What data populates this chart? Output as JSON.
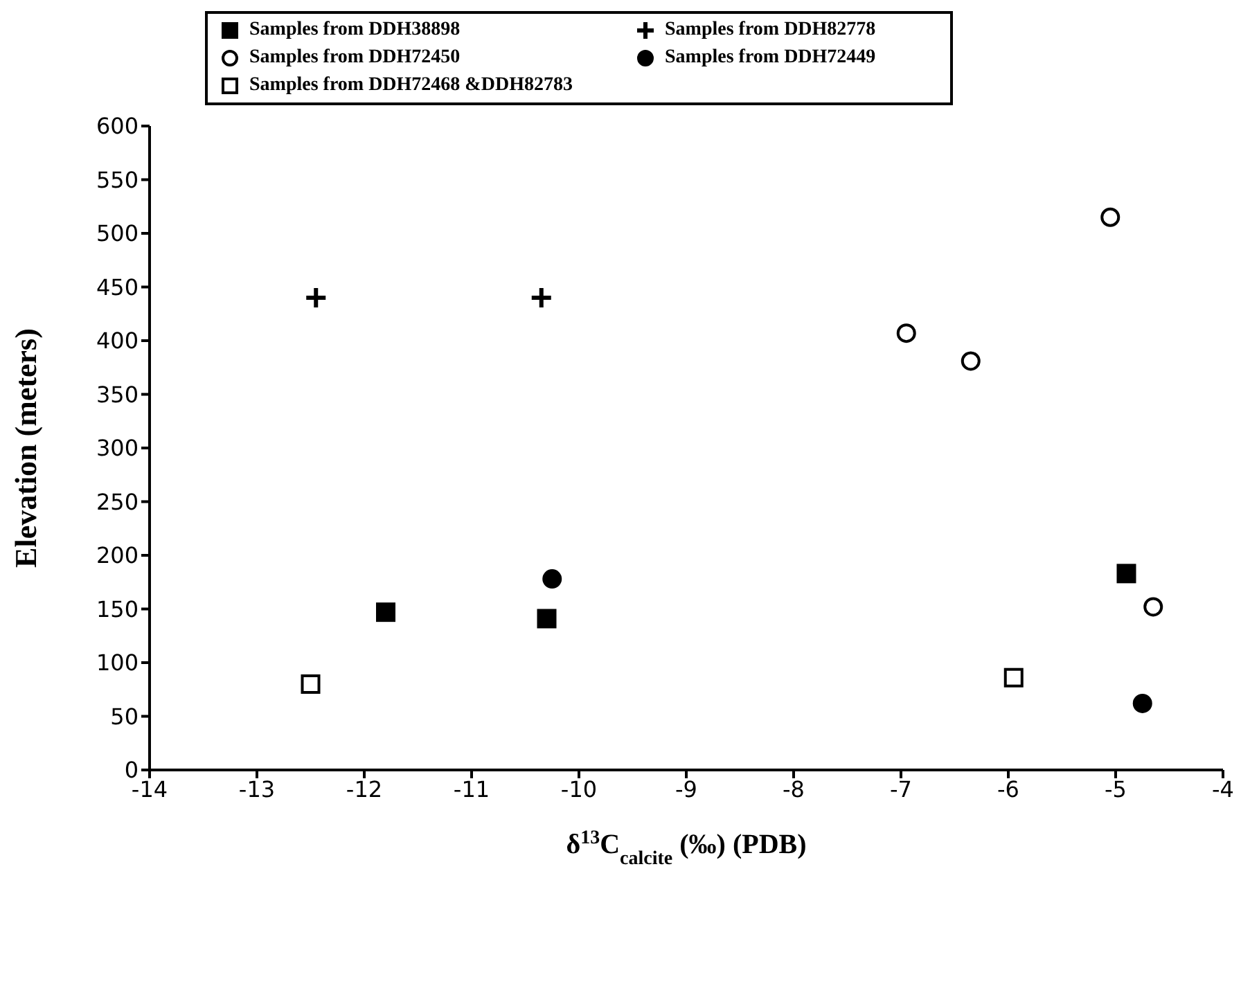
{
  "chart_data": {
    "type": "scatter",
    "xlabel": "δ$^{13}$C$_{calcite}$ (‰) (PDB)",
    "ylabel": "Elevation (meters)",
    "xlim": [
      -14,
      -4
    ],
    "xticks": [
      -14,
      -13,
      -12,
      -11,
      -10,
      -9,
      -8,
      -7,
      -6,
      -5,
      -4
    ],
    "ylim": [
      0,
      600
    ],
    "yticks": [
      0,
      50,
      100,
      150,
      200,
      250,
      300,
      350,
      400,
      450,
      500,
      550,
      600
    ],
    "grid": false,
    "legend": "top",
    "series": [
      {
        "name": "Samples from DDH38898",
        "color": "#000000",
        "marker": "square",
        "x": [
          -11.8,
          -10.3,
          -4.9
        ],
        "values": [
          147,
          141,
          183
        ]
      },
      {
        "name": "Samples from DDH82778",
        "color": "#000000",
        "marker": "cross",
        "x": [
          -12.45,
          -10.35
        ],
        "values": [
          440,
          440
        ]
      },
      {
        "name": "Samples from DDH72450",
        "color": "#ffffff",
        "marker": "circle",
        "x": [
          -6.95,
          -6.35,
          -5.05,
          -4.65
        ],
        "values": [
          407,
          381,
          515,
          152
        ]
      },
      {
        "name": "Samples from DDH72449",
        "color": "#000000",
        "marker": "circle",
        "x": [
          -10.25,
          -4.75
        ],
        "values": [
          178,
          62
        ]
      },
      {
        "name": "Samples from DDH72468 &DDH82783",
        "color": "#ffffff",
        "marker": "square",
        "x": [
          -12.5,
          -5.95
        ],
        "values": [
          80,
          86
        ]
      }
    ]
  }
}
